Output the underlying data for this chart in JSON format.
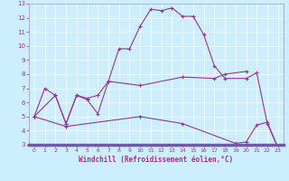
{
  "xlabel": "Windchill (Refroidissement éolien,°C)",
  "bg_color": "#cceeff",
  "line_color": "#993399",
  "grid_color": "#ffffff",
  "spine_color": "#9999bb",
  "xlim": [
    -0.5,
    23.5
  ],
  "ylim": [
    3,
    13
  ],
  "xticks": [
    0,
    1,
    2,
    3,
    4,
    5,
    6,
    7,
    8,
    9,
    10,
    11,
    12,
    13,
    14,
    15,
    16,
    17,
    18,
    19,
    20,
    21,
    22,
    23
  ],
  "yticks": [
    3,
    4,
    5,
    6,
    7,
    8,
    9,
    10,
    11,
    12,
    13
  ],
  "line1_x": [
    0,
    1,
    2,
    3,
    4,
    5,
    6,
    7,
    8,
    9,
    10,
    11,
    12,
    13,
    14,
    15,
    16,
    17,
    18,
    20,
    21,
    22,
    23
  ],
  "line1_y": [
    5.0,
    7.0,
    6.5,
    4.5,
    6.5,
    6.2,
    5.2,
    7.5,
    9.8,
    9.8,
    11.4,
    12.6,
    12.5,
    12.7,
    12.1,
    12.1,
    10.8,
    8.6,
    7.7,
    7.7,
    8.1,
    4.5,
    2.8
  ],
  "line2_x": [
    0,
    2,
    3,
    4,
    5,
    6,
    7,
    10,
    14,
    17,
    18,
    20
  ],
  "line2_y": [
    5.0,
    6.5,
    4.5,
    6.5,
    6.3,
    6.5,
    7.5,
    7.2,
    7.8,
    7.7,
    8.0,
    8.2
  ],
  "line3_x": [
    0,
    3,
    10,
    14,
    19,
    20,
    21,
    22,
    23
  ],
  "line3_y": [
    5.0,
    4.3,
    5.0,
    4.5,
    3.1,
    3.2,
    4.4,
    4.6,
    2.8
  ],
  "tick_labelsize": 5,
  "xlabel_fontsize": 5.5,
  "marker_size": 3,
  "linewidth": 0.8
}
